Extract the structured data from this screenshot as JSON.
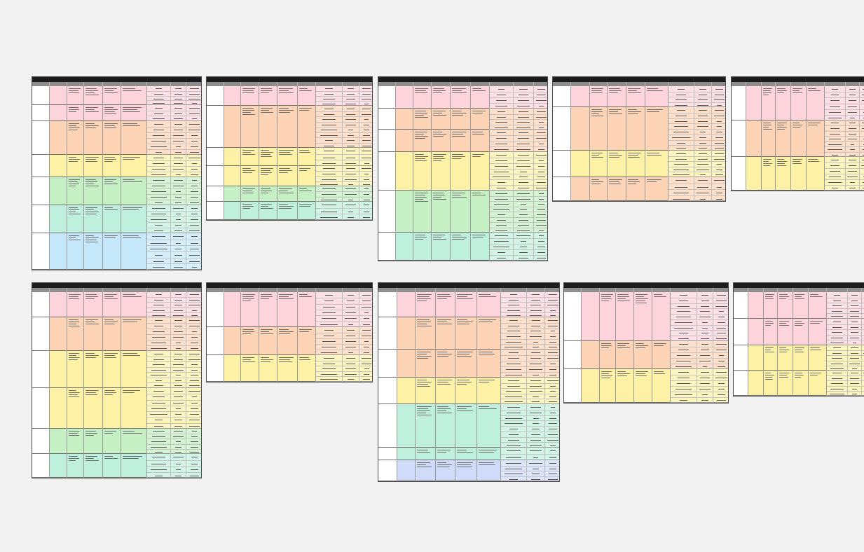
{
  "screen": {
    "background": "#f2f2f3"
  },
  "palette": {
    "pink": "#fdd4dc",
    "orange": "#fdd3b6",
    "yellow": "#fdf1a6",
    "green": "#c4f0c4",
    "mint": "#bff0de",
    "blue": "#c5e8fb",
    "lavender": "#cfdcf9",
    "title_bar": "#1c1c1c",
    "header_bar": "#8c8c8c"
  },
  "note": "",
  "cards": [
    {
      "id": "card-1",
      "title": "",
      "columns": [
        "",
        "",
        "",
        "",
        "",
        "",
        "",
        "",
        ""
      ],
      "cols": [
        0.1,
        0.2,
        0.3,
        0.41,
        0.52,
        0.67,
        0.81,
        0.9
      ],
      "grid_col": 0.67,
      "rows": [
        {
          "h": 27,
          "color": "pink",
          "group": "",
          "label": "",
          "lines": [
            3,
            4,
            3,
            2
          ],
          "grid_rows": 4
        },
        {
          "h": 23,
          "color": "pink",
          "group": "",
          "label": "",
          "lines": [
            3,
            3,
            4,
            3
          ],
          "grid_rows": 3
        },
        {
          "h": 48,
          "color": "orange",
          "group": "",
          "label": "",
          "lines": [
            4,
            3,
            3,
            2
          ],
          "grid_rows": 6
        },
        {
          "h": 32,
          "color": "yellow",
          "group": "",
          "label": "",
          "lines": [
            3,
            3,
            3,
            2
          ],
          "grid_rows": 4
        },
        {
          "h": 40,
          "color": "green",
          "group": "",
          "label": "",
          "lines": [
            4,
            4,
            3,
            2
          ],
          "grid_rows": 5
        },
        {
          "h": 40,
          "color": "mint",
          "group": "",
          "label": "",
          "lines": [
            4,
            4,
            2,
            2
          ],
          "grid_rows": 5
        },
        {
          "h": 52,
          "color": "blue",
          "group": "",
          "label": "",
          "lines": [
            3,
            4,
            2,
            2
          ],
          "grid_rows": 6
        }
      ]
    },
    {
      "id": "card-2",
      "title": "",
      "columns": [
        "",
        "",
        "",
        "",
        "",
        "",
        "",
        "",
        ""
      ],
      "cols": [
        0.1,
        0.2,
        0.31,
        0.42,
        0.54,
        0.65,
        0.81,
        0.91
      ],
      "grid_col": 0.65,
      "rows": [
        {
          "h": 28,
          "color": "pink",
          "group": "",
          "label": "",
          "lines": [
            3,
            3,
            3,
            2
          ],
          "grid_rows": 4
        },
        {
          "h": 60,
          "color": "orange",
          "group": "",
          "label": "",
          "lines": [
            4,
            3,
            3,
            2
          ],
          "grid_rows": 8
        },
        {
          "h": 26,
          "color": "yellow",
          "group": "",
          "label": "",
          "lines": [
            3,
            4,
            3,
            2
          ],
          "grid_rows": 3
        },
        {
          "h": 29,
          "color": "yellow",
          "group": "",
          "label": "",
          "lines": [
            3,
            4,
            3,
            2
          ],
          "grid_rows": 4
        },
        {
          "h": 22,
          "color": "green",
          "group": "",
          "label": "",
          "lines": [
            3,
            3,
            3,
            2
          ],
          "grid_rows": 3
        },
        {
          "h": 26,
          "color": "mint",
          "group": "",
          "label": "",
          "lines": [
            3,
            3,
            3,
            2
          ],
          "grid_rows": 3
        }
      ]
    },
    {
      "id": "card-3",
      "title": "",
      "columns": [
        "",
        "",
        "",
        "",
        "",
        "",
        "",
        "",
        ""
      ],
      "cols": [
        0.1,
        0.2,
        0.31,
        0.42,
        0.54,
        0.65,
        0.79,
        0.91
      ],
      "grid_col": 0.65,
      "rows": [
        {
          "h": 32,
          "color": "pink",
          "group": "",
          "label": "",
          "lines": [
            3,
            3,
            3,
            2
          ],
          "grid_rows": 4
        },
        {
          "h": 30,
          "color": "orange",
          "group": "",
          "label": "",
          "lines": [
            4,
            3,
            3,
            2
          ],
          "grid_rows": 4
        },
        {
          "h": 32,
          "color": "orange",
          "group": "",
          "label": "",
          "lines": [
            4,
            3,
            3,
            2
          ],
          "grid_rows": 4
        },
        {
          "h": 55,
          "color": "yellow",
          "group": "",
          "label": "",
          "lines": [
            4,
            4,
            3,
            2
          ],
          "grid_rows": 7
        },
        {
          "h": 60,
          "color": "green",
          "group": "",
          "label": "",
          "lines": [
            5,
            4,
            3,
            2
          ],
          "grid_rows": 8
        },
        {
          "h": 40,
          "color": "mint",
          "group": "",
          "label": "",
          "lines": [
            3,
            3,
            3,
            2
          ],
          "grid_rows": 5
        }
      ]
    },
    {
      "id": "card-4",
      "title": "",
      "columns": [
        "",
        "",
        "",
        "",
        "",
        "",
        "",
        "",
        ""
      ],
      "cols": [
        0.1,
        0.21,
        0.31,
        0.42,
        0.53,
        0.66,
        0.81,
        0.91
      ],
      "grid_col": 0.66,
      "rows": [
        {
          "h": 30,
          "color": "pink",
          "group": "",
          "label": "",
          "lines": [
            3,
            3,
            3,
            2
          ],
          "grid_rows": 4
        },
        {
          "h": 62,
          "color": "orange",
          "group": "",
          "label": "",
          "lines": [
            4,
            3,
            3,
            2
          ],
          "grid_rows": 8
        },
        {
          "h": 38,
          "color": "yellow",
          "group": "",
          "label": "",
          "lines": [
            3,
            3,
            3,
            2
          ],
          "grid_rows": 5
        },
        {
          "h": 34,
          "color": "orange",
          "group": "",
          "label": "",
          "lines": [
            3,
            3,
            3,
            2
          ],
          "grid_rows": 4
        }
      ]
    },
    {
      "id": "card-5",
      "title": "",
      "columns": [
        "",
        "",
        "",
        "",
        "",
        "",
        "",
        "",
        ""
      ],
      "cols": [
        0.1,
        0.21,
        0.31,
        0.42,
        0.53,
        0.66,
        0.81,
        0.91
      ],
      "grid_col": 0.66,
      "rows": [
        {
          "h": 49,
          "color": "pink",
          "group": "",
          "label": "",
          "lines": [
            4,
            3,
            3,
            2
          ],
          "grid_rows": 6
        },
        {
          "h": 52,
          "color": "orange",
          "group": "",
          "label": "",
          "lines": [
            4,
            4,
            3,
            2
          ],
          "grid_rows": 7
        },
        {
          "h": 48,
          "color": "yellow",
          "group": "",
          "label": "",
          "lines": [
            4,
            4,
            3,
            2
          ],
          "grid_rows": 6
        }
      ]
    },
    {
      "id": "card-6",
      "title": "",
      "columns": [
        "",
        "",
        "",
        "",
        "",
        "",
        "",
        "",
        ""
      ],
      "cols": [
        0.1,
        0.2,
        0.3,
        0.41,
        0.52,
        0.67,
        0.81,
        0.9
      ],
      "grid_col": 0.67,
      "rows": [
        {
          "h": 36,
          "color": "pink",
          "group": "",
          "label": "",
          "lines": [
            3,
            3,
            3,
            2
          ],
          "grid_rows": 5
        },
        {
          "h": 48,
          "color": "orange",
          "group": "",
          "label": "",
          "lines": [
            4,
            3,
            3,
            2
          ],
          "grid_rows": 6
        },
        {
          "h": 53,
          "color": "yellow",
          "group": "",
          "label": "",
          "lines": [
            4,
            3,
            3,
            2
          ],
          "grid_rows": 7
        },
        {
          "h": 58,
          "color": "yellow",
          "group": "",
          "label": "",
          "lines": [
            4,
            3,
            3,
            2
          ],
          "grid_rows": 7
        },
        {
          "h": 36,
          "color": "green",
          "group": "",
          "label": "",
          "lines": [
            3,
            3,
            2,
            2
          ],
          "grid_rows": 5
        },
        {
          "h": 34,
          "color": "mint",
          "group": "",
          "label": "",
          "lines": [
            3,
            3,
            2,
            2
          ],
          "grid_rows": 4
        }
      ]
    },
    {
      "id": "card-7",
      "title": "",
      "columns": [
        "",
        "",
        "",
        "",
        "",
        "",
        "",
        "",
        ""
      ],
      "cols": [
        0.1,
        0.2,
        0.31,
        0.42,
        0.54,
        0.65,
        0.81,
        0.91
      ],
      "grid_col": 0.65,
      "rows": [
        {
          "h": 50,
          "color": "pink",
          "group": "",
          "label": "",
          "lines": [
            4,
            3,
            3,
            2
          ],
          "grid_rows": 6
        },
        {
          "h": 40,
          "color": "orange",
          "group": "",
          "label": "",
          "lines": [
            3,
            3,
            3,
            2
          ],
          "grid_rows": 5
        },
        {
          "h": 38,
          "color": "yellow",
          "group": "",
          "label": "",
          "lines": [
            3,
            3,
            3,
            2
          ],
          "grid_rows": 5
        }
      ]
    },
    {
      "id": "card-8",
      "title": "",
      "columns": [
        "",
        "",
        "",
        "",
        "",
        "",
        "",
        "",
        ""
      ],
      "cols": [
        0.1,
        0.2,
        0.31,
        0.42,
        0.54,
        0.67,
        0.81,
        0.91
      ],
      "grid_col": 0.67,
      "rows": [
        {
          "h": 36,
          "color": "pink",
          "group": "",
          "label": "",
          "lines": [
            4,
            3,
            3,
            2
          ],
          "grid_rows": 5
        },
        {
          "h": 46,
          "color": "orange",
          "group": "",
          "label": "",
          "lines": [
            4,
            3,
            3,
            2
          ],
          "grid_rows": 6
        },
        {
          "h": 40,
          "color": "orange",
          "group": "",
          "label": "",
          "lines": [
            4,
            3,
            3,
            2
          ],
          "grid_rows": 5
        },
        {
          "h": 38,
          "color": "yellow",
          "group": "",
          "label": "",
          "lines": [
            4,
            3,
            3,
            2
          ],
          "grid_rows": 5
        },
        {
          "h": 62,
          "color": "mint",
          "group": "",
          "label": "",
          "lines": [
            5,
            4,
            3,
            2
          ],
          "grid_rows": 8
        },
        {
          "h": 18,
          "color": "mint",
          "group": "",
          "label": "",
          "lines": [
            2,
            2,
            2,
            2
          ],
          "grid_rows": 2
        },
        {
          "h": 30,
          "color": "lavender",
          "group": "",
          "label": "",
          "lines": [
            3,
            3,
            3,
            2
          ],
          "grid_rows": 4
        }
      ]
    },
    {
      "id": "card-9",
      "title": "",
      "columns": [
        "",
        "",
        "",
        "",
        "",
        "",
        "",
        "",
        ""
      ],
      "cols": [
        0.1,
        0.21,
        0.31,
        0.42,
        0.53,
        0.64,
        0.8,
        0.9
      ],
      "grid_col": 0.64,
      "rows": [
        {
          "h": 70,
          "color": "pink",
          "group": "",
          "label": "",
          "lines": [
            4,
            4,
            5,
            2
          ],
          "grid_rows": 9
        },
        {
          "h": 40,
          "color": "orange",
          "group": "",
          "label": "",
          "lines": [
            3,
            3,
            3,
            2
          ],
          "grid_rows": 5
        },
        {
          "h": 48,
          "color": "yellow",
          "group": "",
          "label": "",
          "lines": [
            4,
            3,
            3,
            2
          ],
          "grid_rows": 6
        }
      ]
    },
    {
      "id": "card-10",
      "title": "",
      "columns": [
        "",
        "",
        "",
        "",
        "",
        "",
        "",
        "",
        ""
      ],
      "cols": [
        0.1,
        0.21,
        0.31,
        0.42,
        0.53,
        0.66,
        0.81,
        0.91
      ],
      "grid_col": 0.66,
      "rows": [
        {
          "h": 38,
          "color": "pink",
          "group": "",
          "label": "",
          "lines": [
            3,
            3,
            3,
            2
          ],
          "grid_rows": 5
        },
        {
          "h": 38,
          "color": "pink",
          "group": "",
          "label": "",
          "lines": [
            3,
            3,
            3,
            2
          ],
          "grid_rows": 5
        },
        {
          "h": 36,
          "color": "yellow",
          "group": "",
          "label": "",
          "lines": [
            3,
            3,
            3,
            2
          ],
          "grid_rows": 5
        },
        {
          "h": 36,
          "color": "yellow",
          "group": "",
          "label": "",
          "lines": [
            4,
            3,
            3,
            2
          ],
          "grid_rows": 5
        }
      ]
    }
  ]
}
